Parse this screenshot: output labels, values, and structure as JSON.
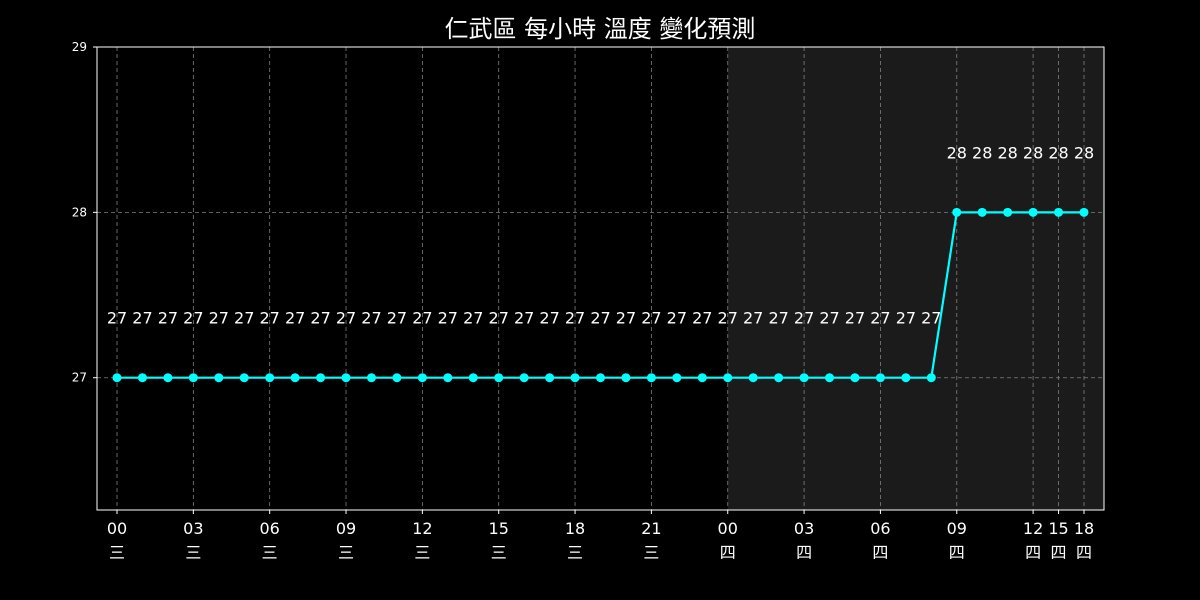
{
  "chart_data": {
    "type": "line",
    "title": "仁武區 每小時 溫度 變化預測",
    "xlabel": "",
    "ylabel": "",
    "ylim": [
      26.2,
      29
    ],
    "yticks": [
      27,
      28,
      29
    ],
    "grid": true,
    "shaded_region_start_index": 24,
    "colors": {
      "background": "#000000",
      "plot_background": "#000000",
      "shaded_background": "#1b1b1b",
      "line": "#00ffff",
      "grid": "#808080",
      "axes": "#ffffff",
      "text": "#ffffff"
    },
    "x_labels": [
      {
        "index": 0,
        "hour": "00",
        "day": "三"
      },
      {
        "index": 3,
        "hour": "03",
        "day": "三"
      },
      {
        "index": 6,
        "hour": "06",
        "day": "三"
      },
      {
        "index": 9,
        "hour": "09",
        "day": "三"
      },
      {
        "index": 12,
        "hour": "12",
        "day": "三"
      },
      {
        "index": 15,
        "hour": "15",
        "day": "三"
      },
      {
        "index": 18,
        "hour": "18",
        "day": "三"
      },
      {
        "index": 21,
        "hour": "21",
        "day": "三"
      },
      {
        "index": 24,
        "hour": "00",
        "day": "四"
      },
      {
        "index": 27,
        "hour": "03",
        "day": "四"
      },
      {
        "index": 30,
        "hour": "06",
        "day": "四"
      },
      {
        "index": 33,
        "hour": "09",
        "day": "四"
      },
      {
        "index": 36,
        "hour": "12",
        "day": "四"
      },
      {
        "index": 37,
        "hour": "15",
        "day": "四"
      },
      {
        "index": 38,
        "hour": "18",
        "day": "四"
      }
    ],
    "values": [
      27,
      27,
      27,
      27,
      27,
      27,
      27,
      27,
      27,
      27,
      27,
      27,
      27,
      27,
      27,
      27,
      27,
      27,
      27,
      27,
      27,
      27,
      27,
      27,
      27,
      27,
      27,
      27,
      27,
      27,
      27,
      27,
      27,
      28,
      28,
      28,
      28,
      28,
      28
    ],
    "data_labels": [
      "27",
      "27",
      "27",
      "27",
      "27",
      "27",
      "27",
      "27",
      "27",
      "27",
      "27",
      "27",
      "27",
      "27",
      "27",
      "27",
      "27",
      "27",
      "27",
      "27",
      "27",
      "27",
      "27",
      "27",
      "27",
      "27",
      "27",
      "27",
      "27",
      "27",
      "27",
      "27",
      "27",
      "28",
      "28",
      "28",
      "28",
      "28",
      "28"
    ]
  }
}
